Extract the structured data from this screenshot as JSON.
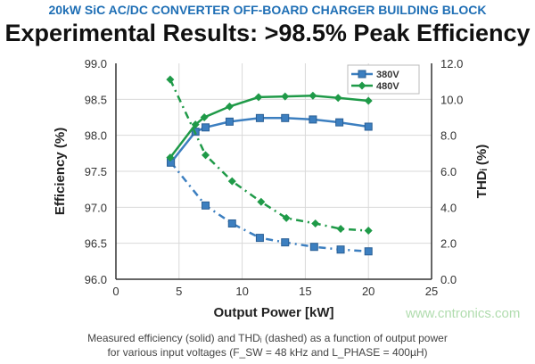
{
  "header": {
    "subtitle": "20kW SiC AC/DC CONVERTER OFF-BOARD CHARGER BUILDING BLOCK",
    "title": "Experimental Results: >98.5% Peak Efficiency"
  },
  "caption": {
    "line1": "Measured efficiency (solid) and THDᵢ (dashed) as a function of output power",
    "line2": "for various input voltages (F_SW = 48 kHz and L_PHASE = 400µH)"
  },
  "watermark": "www.cntronics.com",
  "chart_data": {
    "type": "line",
    "xlabel": "Output Power [kW]",
    "ylabel": "Efficiency (%)",
    "y2label": "THDᵢ (%)",
    "xlim": [
      0,
      25
    ],
    "ylim": [
      96.0,
      99.0
    ],
    "y2lim": [
      0,
      12
    ],
    "xticks": [
      "0",
      "5",
      "10",
      "15",
      "20",
      "25"
    ],
    "yticks": [
      "96.0",
      "96.5",
      "97.0",
      "97.5",
      "98.0",
      "98.5",
      "99.0"
    ],
    "y2ticks": [
      "0.0",
      "2.0",
      "4.0",
      "6.0",
      "8.0",
      "10.0",
      "12.0"
    ],
    "grid": true,
    "legend": "top-right",
    "colors": {
      "380V": "#3c7fc0",
      "480V": "#1f9a48"
    },
    "series": [
      {
        "name": "380V",
        "marker": "square",
        "efficiency": {
          "x": [
            4.35,
            6.3,
            7.1,
            9.0,
            11.4,
            13.4,
            15.6,
            17.7,
            20.0
          ],
          "y": [
            97.62,
            98.05,
            98.11,
            98.19,
            98.24,
            98.24,
            98.22,
            98.18,
            98.12
          ]
        },
        "thd": {
          "x": [
            4.35,
            7.1,
            9.2,
            11.4,
            13.4,
            15.7,
            17.8,
            20.0
          ],
          "y": [
            6.5,
            4.1,
            3.1,
            2.3,
            2.05,
            1.8,
            1.65,
            1.55
          ]
        }
      },
      {
        "name": "480V",
        "marker": "diamond",
        "efficiency": {
          "x": [
            4.3,
            6.3,
            7.0,
            9.0,
            11.3,
            13.4,
            15.6,
            17.6,
            20.0
          ],
          "y": [
            97.69,
            98.15,
            98.25,
            98.4,
            98.53,
            98.54,
            98.55,
            98.52,
            98.48
          ]
        },
        "thd": {
          "x": [
            4.3,
            7.1,
            9.2,
            11.5,
            13.5,
            15.8,
            17.8,
            20.0
          ],
          "y": [
            11.1,
            6.9,
            5.45,
            4.3,
            3.4,
            3.1,
            2.8,
            2.7
          ]
        }
      }
    ]
  }
}
